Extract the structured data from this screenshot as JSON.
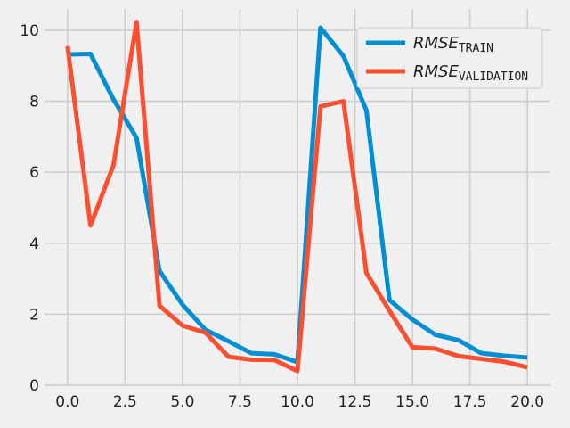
{
  "chart_data": {
    "type": "line",
    "title": "",
    "xlabel": "",
    "ylabel": "",
    "xlim": [
      -1,
      21
    ],
    "ylim": [
      0,
      10.6
    ],
    "x_ticks": [
      0,
      2.5,
      5,
      7.5,
      10,
      12.5,
      15,
      17.5,
      20
    ],
    "x_tick_labels": [
      "0.0",
      "2.5",
      "5.0",
      "7.5",
      "10.0",
      "12.5",
      "15.0",
      "17.5",
      "20.0"
    ],
    "y_ticks": [
      0,
      2,
      4,
      6,
      8,
      10
    ],
    "y_tick_labels": [
      "0",
      "2",
      "4",
      "6",
      "8",
      "10"
    ],
    "grid": true,
    "legend_position": "top-right",
    "x": [
      0,
      1,
      2,
      3,
      4,
      5,
      6,
      7,
      8,
      9,
      10,
      11,
      12,
      13,
      14,
      15,
      16,
      17,
      18,
      19,
      20
    ],
    "series": [
      {
        "name_main": "RMSE",
        "name_sub": "TRAIN",
        "color": "#008fd5",
        "values": [
          9.32,
          9.33,
          8.05,
          6.97,
          3.22,
          2.27,
          1.56,
          1.24,
          0.9,
          0.87,
          0.65,
          10.07,
          9.27,
          7.74,
          2.4,
          1.85,
          1.42,
          1.27,
          0.9,
          0.83,
          0.78
        ]
      },
      {
        "name_main": "RMSE",
        "name_sub": "VALIDATION",
        "color": "#fc4f30",
        "values": [
          9.55,
          4.5,
          6.2,
          10.23,
          2.24,
          1.68,
          1.48,
          0.8,
          0.72,
          0.71,
          0.4,
          7.85,
          8.0,
          3.16,
          2.1,
          1.07,
          1.03,
          0.82,
          0.74,
          0.66,
          0.5
        ]
      }
    ]
  }
}
